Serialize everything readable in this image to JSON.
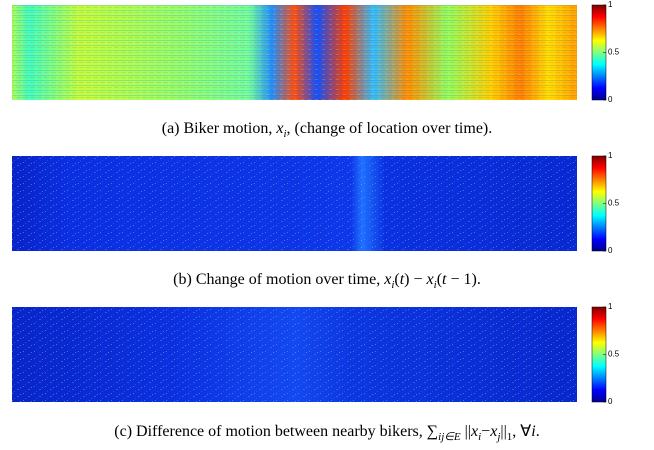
{
  "panels": [
    {
      "caption": [
        "(a) Biker motion, ",
        "x",
        "i",
        ", (change of location over time)."
      ]
    },
    {
      "caption": [
        "(b) Change of motion over time, ",
        "x",
        "i",
        "(",
        "t",
        ") − ",
        "x",
        "i",
        "(",
        "t",
        " − 1)."
      ]
    },
    {
      "caption": [
        "(c) Difference of motion between nearby bikers, ",
        "∑",
        "ij∈E",
        " ||",
        "x",
        "i",
        "−",
        "x",
        "j",
        "||",
        "1",
        ", ∀",
        "i",
        "."
      ]
    }
  ],
  "colorbar": {
    "lim": [
      0,
      1
    ],
    "ticks": [
      0,
      0.5,
      1
    ]
  }
}
